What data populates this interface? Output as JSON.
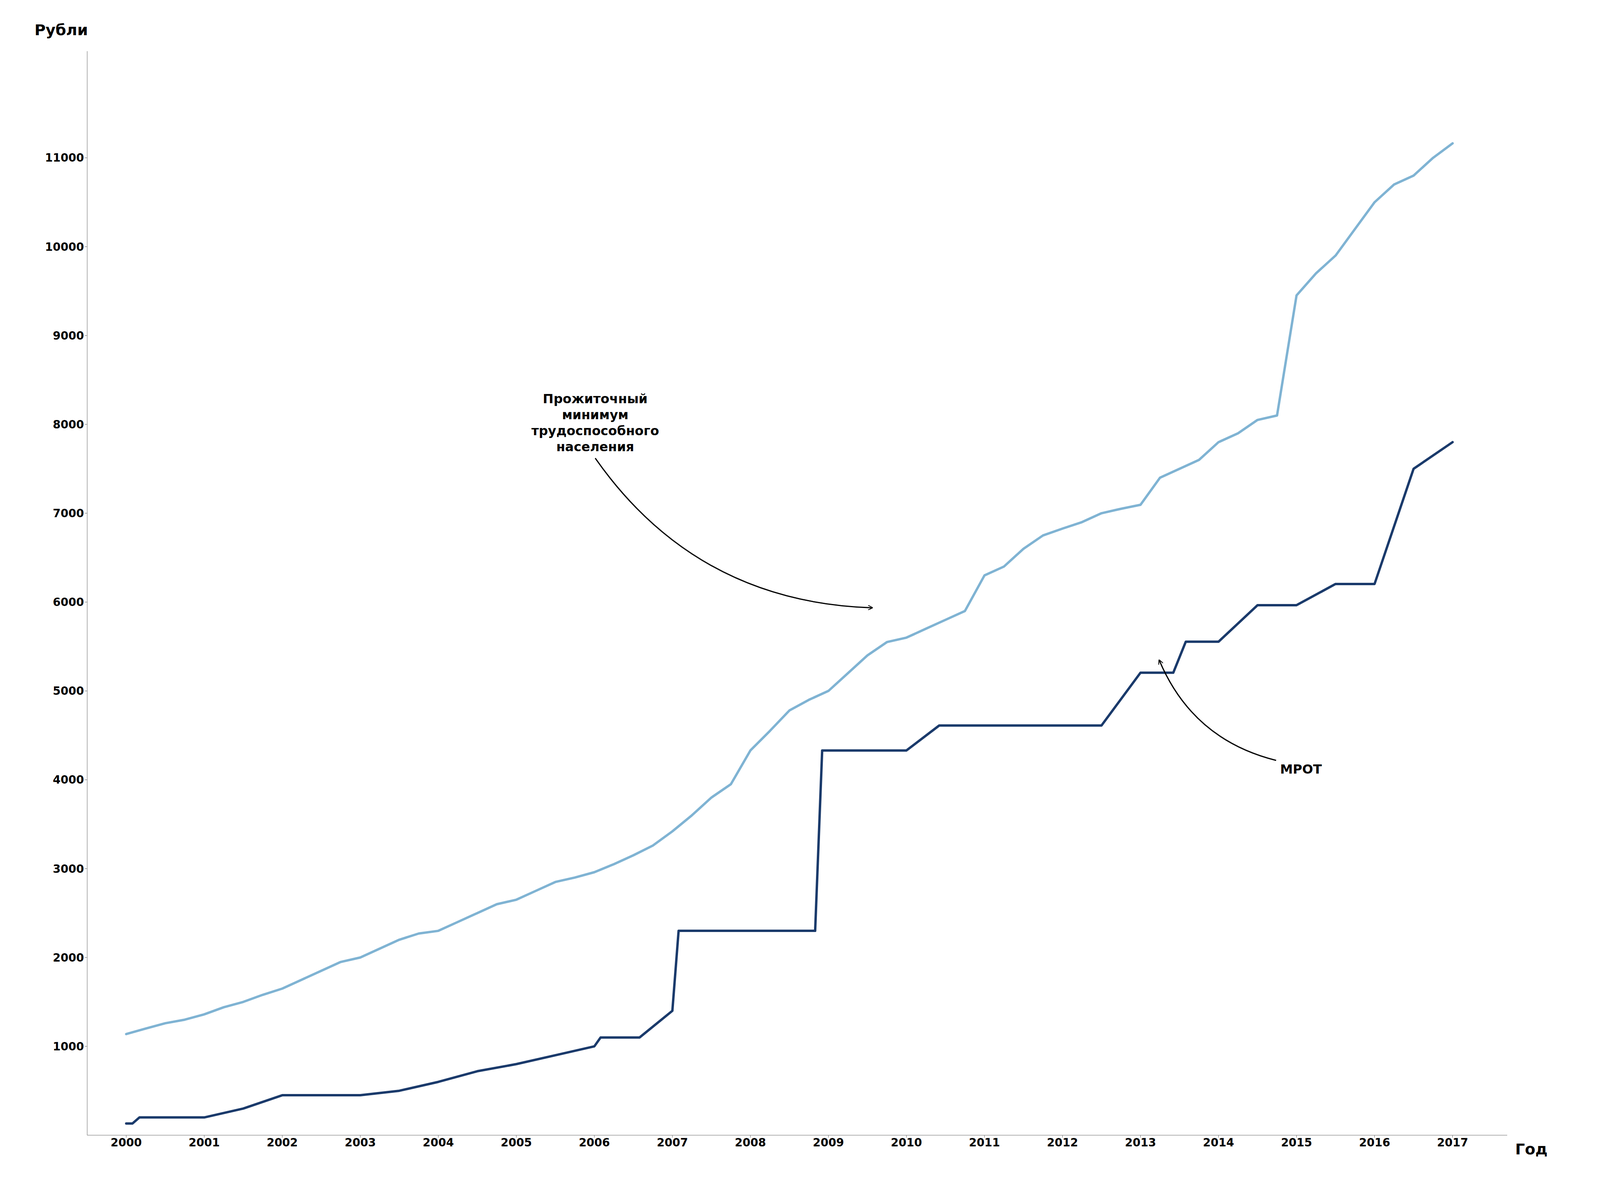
{
  "chart_data": {
    "type": "line",
    "xlabel": "Год",
    "ylabel": "Рубли",
    "series": [
      {
        "color": "#7fb3d3",
        "x": [
          2000.0,
          2000.25,
          2000.5,
          2000.75,
          2001.0,
          2001.25,
          2001.5,
          2001.75,
          2002.0,
          2002.25,
          2002.5,
          2002.75,
          2003.0,
          2003.25,
          2003.5,
          2003.75,
          2004.0,
          2004.25,
          2004.5,
          2004.75,
          2005.0,
          2005.25,
          2005.5,
          2005.75,
          2006.0,
          2006.25,
          2006.5,
          2006.75,
          2007.0,
          2007.25,
          2007.5,
          2007.75,
          2008.0,
          2008.25,
          2008.5,
          2008.75,
          2009.0,
          2009.25,
          2009.5,
          2009.75,
          2010.0,
          2010.25,
          2010.5,
          2010.75,
          2011.0,
          2011.25,
          2011.5,
          2011.75,
          2012.0,
          2012.25,
          2012.5,
          2012.75,
          2013.0,
          2013.25,
          2013.5,
          2013.75,
          2014.0,
          2014.25,
          2014.5,
          2014.75,
          2015.0,
          2015.25,
          2015.5,
          2015.75,
          2016.0,
          2016.25,
          2016.5,
          2016.75,
          2017.0
        ],
        "values": [
          1138,
          1200,
          1260,
          1300,
          1360,
          1440,
          1500,
          1580,
          1650,
          1750,
          1850,
          1950,
          2000,
          2100,
          2200,
          2270,
          2300,
          2400,
          2500,
          2600,
          2650,
          2750,
          2850,
          2900,
          2960,
          3050,
          3150,
          3260,
          3420,
          3600,
          3800,
          3950,
          4330,
          4550,
          4780,
          4900,
          5000,
          5200,
          5400,
          5550,
          5600,
          5700,
          5800,
          5900,
          6300,
          6400,
          6600,
          6750,
          6827,
          6900,
          7000,
          7050,
          7095,
          7400,
          7500,
          7600,
          7800,
          7900,
          8050,
          8100,
          9452,
          9700,
          9900,
          10200,
          10500,
          10700,
          10800,
          11000,
          11163
        ]
      },
      {
        "color": "#1a3a6b",
        "x": [
          2000.0,
          2000.08,
          2000.17,
          2000.33,
          2000.5,
          2000.67,
          2001.0,
          2001.5,
          2002.0,
          2002.5,
          2003.0,
          2003.5,
          2004.0,
          2004.5,
          2005.0,
          2005.5,
          2006.0,
          2006.08,
          2006.17,
          2006.42,
          2006.58,
          2007.0,
          2007.08,
          2008.0,
          2008.83,
          2008.92,
          2009.0,
          2009.5,
          2010.0,
          2010.42,
          2010.5,
          2011.0,
          2011.5,
          2012.0,
          2012.5,
          2013.0,
          2013.42,
          2013.58,
          2014.0,
          2014.5,
          2015.0,
          2015.5,
          2016.0,
          2016.5,
          2017.0
        ],
        "values": [
          132,
          132,
          200,
          200,
          200,
          200,
          200,
          300,
          450,
          450,
          450,
          500,
          600,
          720,
          800,
          900,
          1000,
          1100,
          1100,
          1100,
          1100,
          1400,
          2300,
          2300,
          2300,
          4330,
          4330,
          4330,
          4330,
          4611,
          4611,
          4611,
          4611,
          4611,
          4611,
          5205,
          5205,
          5554,
          5554,
          5965,
          5965,
          6204,
          6204,
          7500,
          7800
        ]
      }
    ],
    "xlim": [
      1999.5,
      2017.7
    ],
    "ylim": [
      0,
      12200
    ],
    "xticks": [
      2000,
      2001,
      2002,
      2003,
      2004,
      2005,
      2006,
      2007,
      2008,
      2009,
      2010,
      2011,
      2012,
      2013,
      2014,
      2015,
      2016,
      2017
    ],
    "yticks": [
      1000,
      2000,
      3000,
      4000,
      5000,
      6000,
      7000,
      8000,
      9000,
      10000,
      11000
    ],
    "grid": false,
    "annotations": [
      {
        "text": "Прожиточный\nминимум\nтрудоспособного\nнаселения",
        "x": 2009.6,
        "y": 5900
      },
      {
        "text": "МРОТ",
        "x": 2013.2,
        "y": 5380
      }
    ]
  }
}
